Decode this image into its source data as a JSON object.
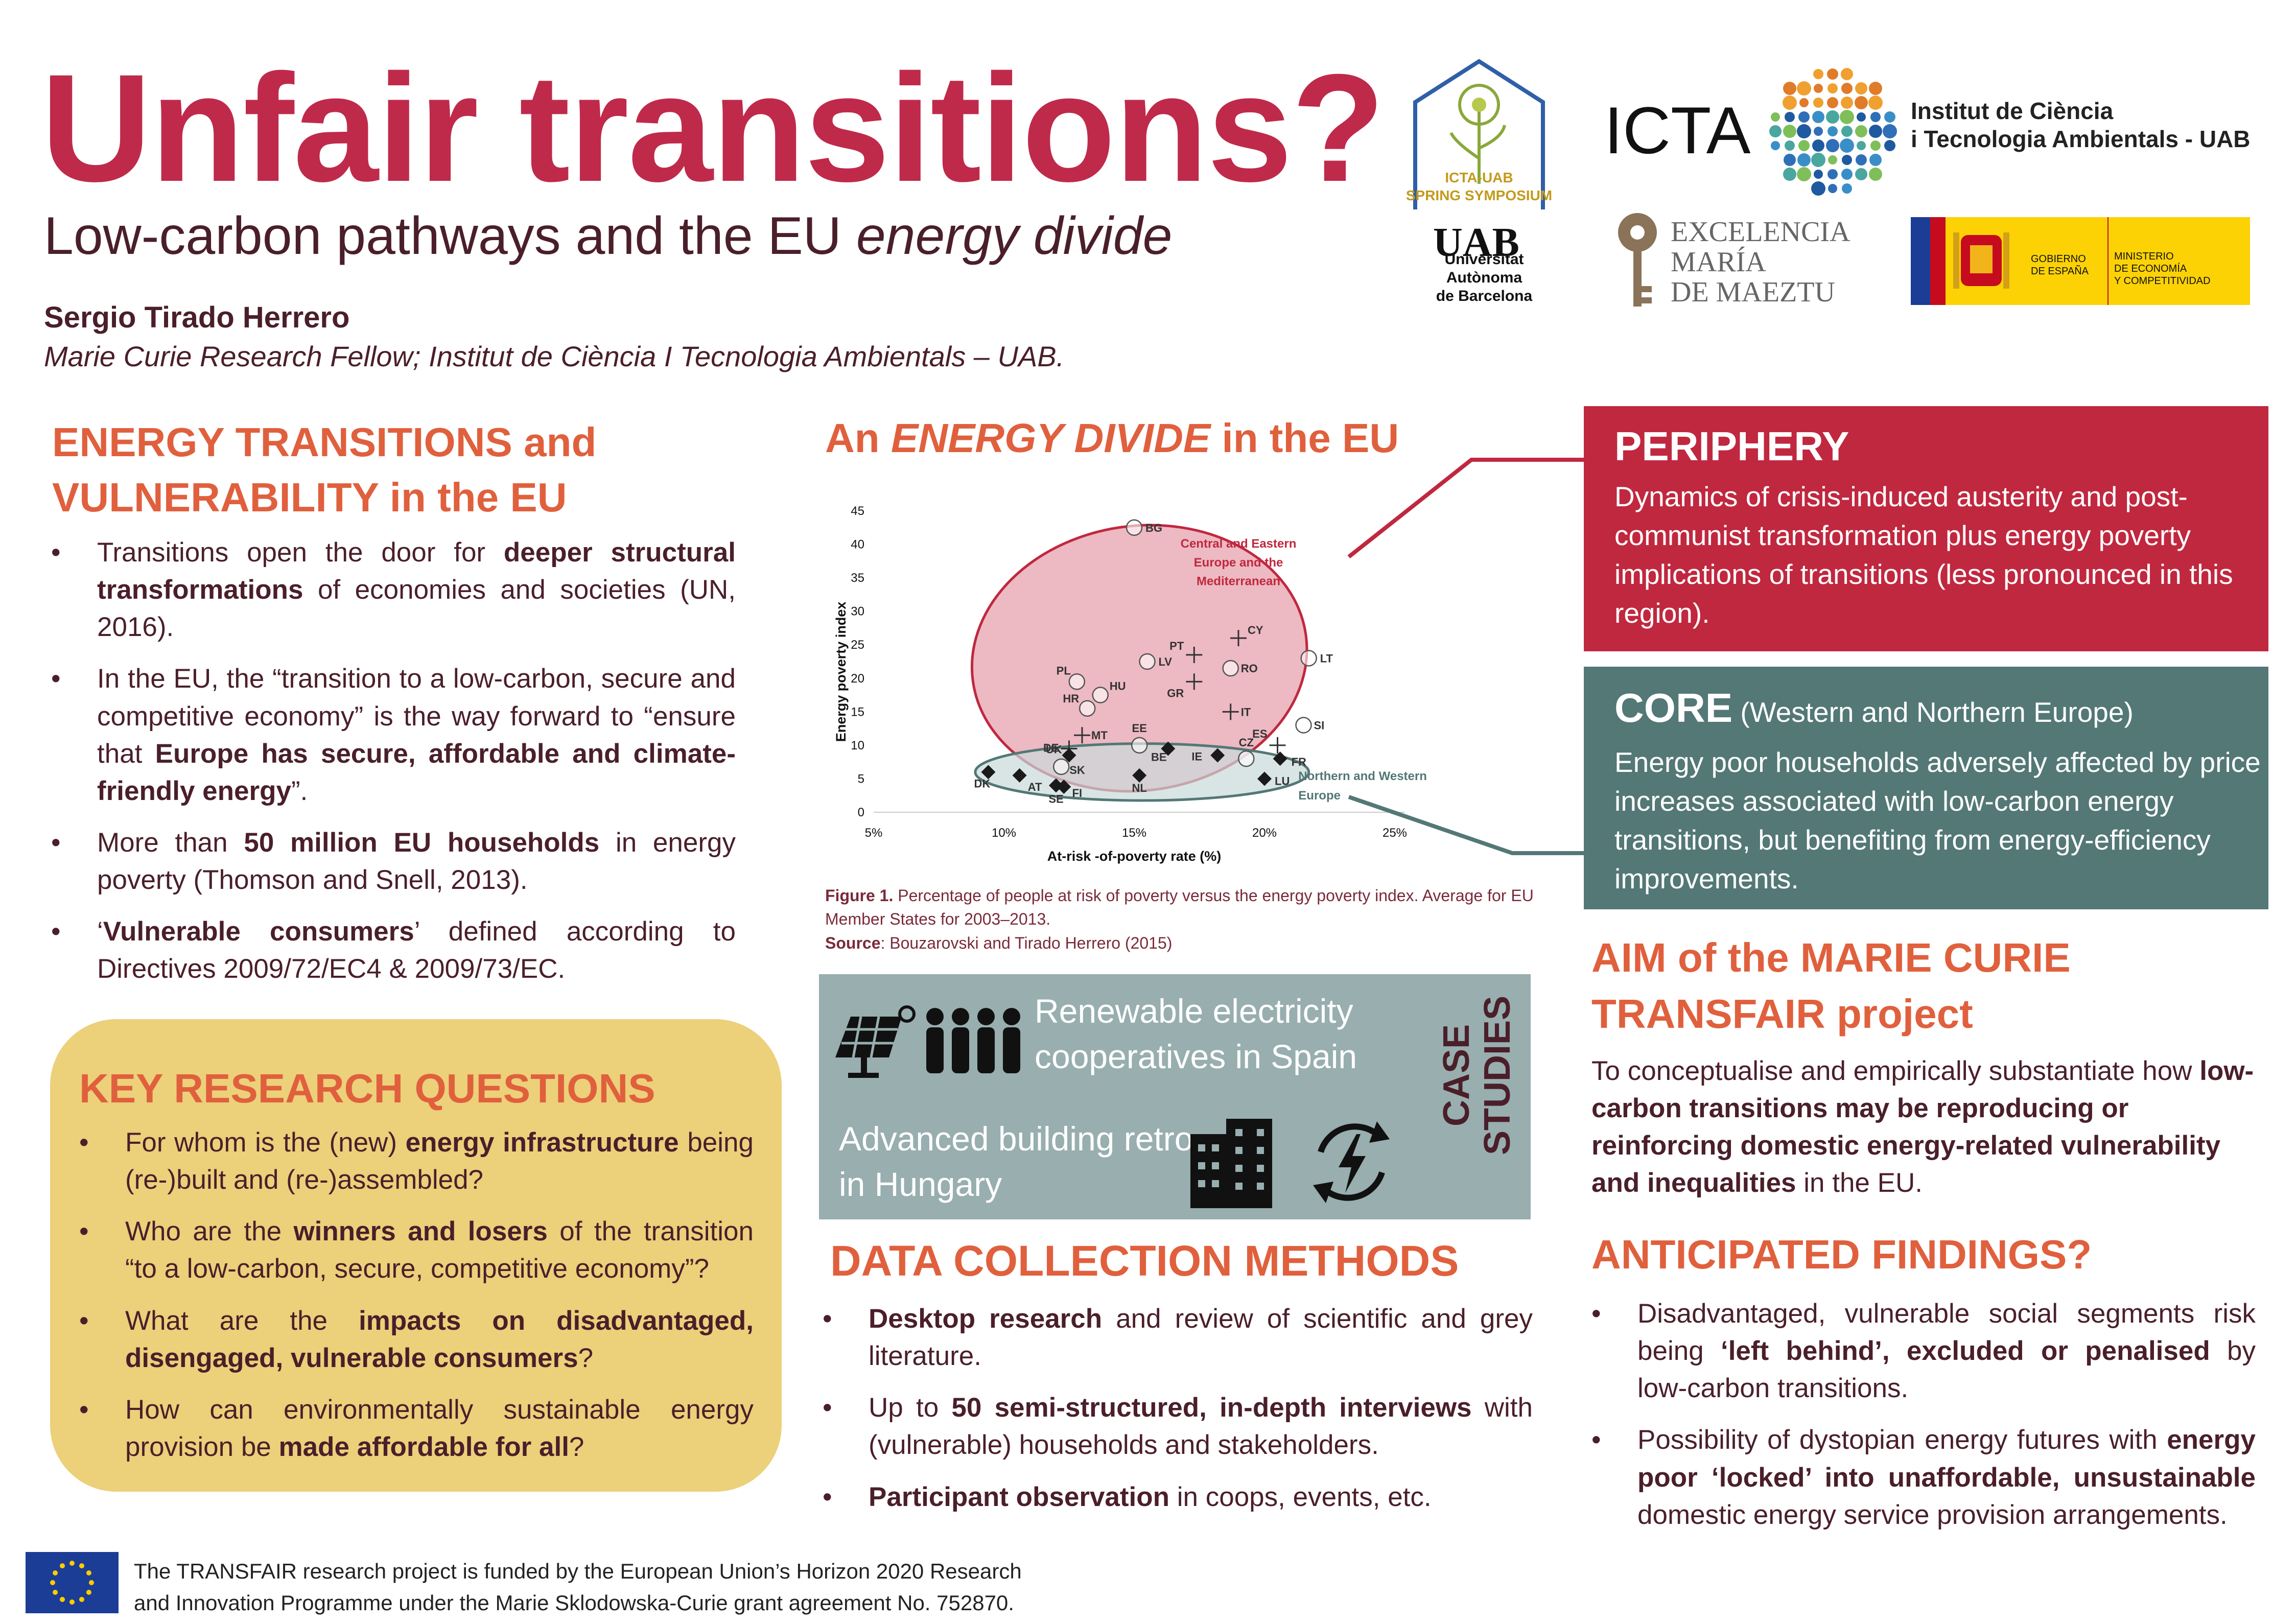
{
  "header": {
    "title": "Unfair transitions?",
    "subtitle_main": "Low-carbon pathways and the EU ",
    "subtitle_italic": "energy divide",
    "author": "Sergio Tirado Herrero",
    "affiliation": "Marie Curie Research Fellow; Institut de Ciència I Tecnologia Ambientals – UAB."
  },
  "logos": {
    "symposium_line1": "ICTA-UAB",
    "symposium_line2": "SPRING SYMPOSIUM",
    "icta": "ICTA",
    "icta_full_1": "Institut de Ciència",
    "icta_full_2": "i Tecnologia Ambientals - UAB",
    "uab": "UAB",
    "uab_full_1": "Universitat Autònoma",
    "uab_full_2": "de Barcelona",
    "excelencia_1": "EXCELENCIA",
    "excelencia_2": "MARÍA",
    "excelencia_3": "DE MAEZTU",
    "gobierno_1": "GOBIERNO",
    "gobierno_2": "DE ESPAÑA",
    "ministerio_1": "MINISTERIO",
    "ministerio_2": "DE ECONOMÍA",
    "ministerio_3": "Y COMPETITIVIDAD"
  },
  "energy_transitions": {
    "title_1": "ENERGY TRANSITIONS and",
    "title_2": "VULNERABILITY in the EU",
    "b1_a": "Transitions open the door for ",
    "b1_b": "deeper structural transformations",
    "b1_c": " of economies and societies (UN, 2016).",
    "b2_a": "In the EU, the “transition to a low-carbon, secure and competitive economy” is the way forward to “ensure that ",
    "b2_b": "Europe has secure, affordable and climate-friendly energy",
    "b2_c": "”.",
    "b3_a": "More than ",
    "b3_b": "50 million EU households",
    "b3_c": " in energy poverty (Thomson and Snell, 2013).",
    "b4_a": "‘",
    "b4_b": "Vulnerable consumers",
    "b4_c": "’ defined according to Directives 2009/72/EC4 & 2009/73/EC."
  },
  "key_questions": {
    "title": "KEY RESEARCH QUESTIONS",
    "q1_a": "For whom is the (new) ",
    "q1_b": "energy infrastructure",
    "q1_c": " being (re-)built and (re-)assembled?",
    "q2_a": "Who are the ",
    "q2_b": "winners and losers",
    "q2_c": " of the transition “to a low-carbon, secure, competitive economy”?",
    "q3_a": "What are the ",
    "q3_b": "impacts on disadvantaged, disengaged, vulnerable consumers",
    "q3_c": "?",
    "q4_a": "How can environmentally sustainable energy provision be ",
    "q4_b": "made affordable for all",
    "q4_c": "?"
  },
  "divide": {
    "title_a": "An ",
    "title_b": "ENERGY DIVIDE",
    "title_c": " in the EU",
    "caption_label": "Figure 1.",
    "caption_text": " Percentage of people at risk of poverty versus the energy poverty index. Average for EU Member States for 2003–2013.",
    "source_label": "Source",
    "source_text": ": Bouzarovski and Tirado Herrero (2015)"
  },
  "chart_data": {
    "type": "scatter",
    "xlabel": "At-risk -of-poverty rate (%)",
    "ylabel": "Energy poverty index",
    "xlim": [
      5,
      25
    ],
    "ylim": [
      0,
      45
    ],
    "xticks": [
      "5%",
      "10%",
      "15%",
      "20%",
      "25%"
    ],
    "yticks": [
      "0",
      "5",
      "10",
      "15",
      "20",
      "25",
      "30",
      "35",
      "40",
      "45"
    ],
    "group_labels": {
      "cee_1": "Central and Eastern",
      "cee_2": "Europe and the",
      "cee_3": "Mediterranean",
      "nwe_1": "Northern and Western",
      "nwe_2": "Europe"
    },
    "circles": [
      {
        "label": "BG",
        "x": 15.0,
        "y": 42.5
      },
      {
        "label": "LT",
        "x": 21.7,
        "y": 23.0
      },
      {
        "label": "LV",
        "x": 15.5,
        "y": 22.5
      },
      {
        "label": "RO",
        "x": 18.7,
        "y": 21.5
      },
      {
        "label": "PL",
        "x": 12.8,
        "y": 19.5
      },
      {
        "label": "HU",
        "x": 13.7,
        "y": 17.5
      },
      {
        "label": "HR",
        "x": 13.2,
        "y": 15.5
      },
      {
        "label": "SI",
        "x": 21.5,
        "y": 13.0
      },
      {
        "label": "EE",
        "x": 15.2,
        "y": 10.0
      },
      {
        "label": "CZ",
        "x": 19.3,
        "y": 8.0
      },
      {
        "label": "SK",
        "x": 12.2,
        "y": 6.8
      }
    ],
    "crosses": [
      {
        "label": "CY",
        "x": 19.0,
        "y": 26.0
      },
      {
        "label": "PT",
        "x": 17.3,
        "y": 23.5
      },
      {
        "label": "GR",
        "x": 17.3,
        "y": 19.5
      },
      {
        "label": "IT",
        "x": 18.7,
        "y": 15.0
      },
      {
        "label": "ES",
        "x": 20.5,
        "y": 10.0
      },
      {
        "label": "MT",
        "x": 13.0,
        "y": 11.5
      },
      {
        "label": "DE",
        "x": 12.5,
        "y": 9.5
      }
    ],
    "diamonds": [
      {
        "label": "DK",
        "x": 9.4,
        "y": 6.0
      },
      {
        "label": "AT",
        "x": 10.6,
        "y": 5.5
      },
      {
        "label": "UK",
        "x": 12.5,
        "y": 8.5
      },
      {
        "label": "SE",
        "x": 12.0,
        "y": 4.0
      },
      {
        "label": "FI",
        "x": 12.3,
        "y": 3.8
      },
      {
        "label": "NL",
        "x": 15.2,
        "y": 5.5
      },
      {
        "label": "BE",
        "x": 16.3,
        "y": 9.5
      },
      {
        "label": "IE",
        "x": 18.2,
        "y": 8.5
      },
      {
        "label": "LU",
        "x": 20.0,
        "y": 5.0
      },
      {
        "label": "FR",
        "x": 20.6,
        "y": 8.0
      }
    ]
  },
  "case_studies": {
    "label_1": "CASE",
    "label_2": "STUDIES",
    "t1_a": "Renewable electricity",
    "t1_b": "cooperatives in Spain",
    "t2_a": "Advanced building retro",
    "t2_b": "in Hungary"
  },
  "data_methods": {
    "title": "DATA COLLECTION METHODS",
    "m1_a": "Desktop research",
    "m1_b": " and review of scientific and grey literature.",
    "m2_a": "Up to ",
    "m2_b": "50 semi-structured, in-depth interviews",
    "m2_c": " with (vulnerable) households and stakeholders.",
    "m3_a": "Participant observation",
    "m3_b": " in coops, events, etc."
  },
  "periphery": {
    "title": "PERIPHERY",
    "text": "Dynamics of crisis-induced austerity and post-communist transformation plus energy poverty implications of transitions (less pronounced in this region)."
  },
  "core": {
    "title": "CORE",
    "title_sub": " (Western and Northern  Europe)",
    "text": "Energy poor households adversely affected by price increases associated with low-carbon energy transitions, but benefiting from energy-efficiency improvements."
  },
  "aim": {
    "title_1": "AIM of the MARIE CURIE",
    "title_2": "TRANSFAIR project",
    "text_a": "To conceptualise and empirically substantiate how ",
    "text_b": "low-carbon transitions may be reproducing or reinforcing domestic energy-related vulnerability and inequalities",
    "text_c": " in the EU."
  },
  "findings": {
    "title": "ANTICIPATED FINDINGS?",
    "f1_a": "Disadvantaged, vulnerable social segments risk being ",
    "f1_b": "‘left behind’, excluded or penalised",
    "f1_c": " by low-carbon transitions.",
    "f2_a": "Possibility of dystopian energy futures with ",
    "f2_b": "energy poor ‘locked’ into unaffordable, unsustainable",
    "f2_c": " domestic energy service provision arrangements."
  },
  "footer": {
    "line1": "The TRANSFAIR research project is funded by the European Union’s Horizon 2020 Research",
    "line2": "and Innovation Programme under the Marie Sklodowska-Curie grant agreement No. 752870."
  },
  "colors": {
    "title_red": "#bf2a4b",
    "section_orange": "#e0603d",
    "periphery_red": "#c0283f",
    "core_teal": "#537876",
    "case_gray": "#98aeaf",
    "key_yellow": "#ecd07a"
  }
}
